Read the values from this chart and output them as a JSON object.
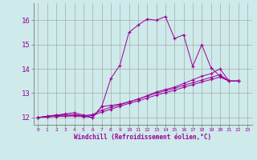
{
  "xlabel": "Windchill (Refroidissement éolien,°C)",
  "background_color": "#ceeaea",
  "grid_color": "#aaaaaa",
  "line_color": "#990099",
  "xlim": [
    -0.5,
    23.5
  ],
  "ylim": [
    11.7,
    16.7
  ],
  "yticks": [
    12,
    13,
    14,
    15,
    16
  ],
  "xticks": [
    0,
    1,
    2,
    3,
    4,
    5,
    6,
    7,
    8,
    9,
    10,
    11,
    12,
    13,
    14,
    15,
    16,
    17,
    18,
    19,
    20,
    21,
    22,
    23
  ],
  "series": [
    {
      "x": [
        0,
        1,
        2,
        3,
        4,
        5,
        6,
        7,
        8,
        9,
        10,
        11,
        12,
        13,
        14,
        15,
        16,
        17,
        18,
        19,
        20,
        21,
        22
      ],
      "y": [
        12.0,
        12.05,
        12.1,
        12.05,
        12.1,
        12.05,
        12.0,
        12.45,
        13.6,
        14.15,
        15.5,
        15.8,
        16.05,
        16.0,
        16.15,
        15.25,
        15.4,
        14.1,
        15.0,
        14.05,
        13.7,
        13.5,
        13.5
      ]
    },
    {
      "x": [
        0,
        1,
        2,
        3,
        4,
        5,
        6,
        7,
        8,
        9,
        10,
        11,
        12,
        13,
        14,
        15,
        16,
        17,
        18,
        19,
        20,
        21,
        22
      ],
      "y": [
        12.0,
        12.05,
        12.1,
        12.15,
        12.2,
        12.1,
        12.0,
        12.45,
        12.5,
        12.55,
        12.65,
        12.75,
        12.9,
        13.05,
        13.15,
        13.25,
        13.4,
        13.55,
        13.7,
        13.8,
        14.0,
        13.5,
        13.5
      ]
    },
    {
      "x": [
        0,
        1,
        2,
        3,
        4,
        5,
        6,
        7,
        8,
        9,
        10,
        11,
        12,
        13,
        14,
        15,
        16,
        17,
        18,
        19,
        20,
        21,
        22
      ],
      "y": [
        12.0,
        12.04,
        12.08,
        12.12,
        12.12,
        12.08,
        12.12,
        12.3,
        12.42,
        12.52,
        12.64,
        12.76,
        12.88,
        13.0,
        13.1,
        13.2,
        13.32,
        13.43,
        13.54,
        13.65,
        13.76,
        13.5,
        13.5
      ]
    },
    {
      "x": [
        0,
        1,
        2,
        3,
        4,
        5,
        6,
        7,
        8,
        9,
        10,
        11,
        12,
        13,
        14,
        15,
        16,
        17,
        18,
        19,
        20,
        21,
        22
      ],
      "y": [
        12.0,
        12.02,
        12.04,
        12.06,
        12.06,
        12.04,
        12.08,
        12.22,
        12.34,
        12.46,
        12.58,
        12.68,
        12.8,
        12.92,
        13.02,
        13.12,
        13.24,
        13.35,
        13.46,
        13.56,
        13.66,
        13.5,
        13.5
      ]
    }
  ]
}
